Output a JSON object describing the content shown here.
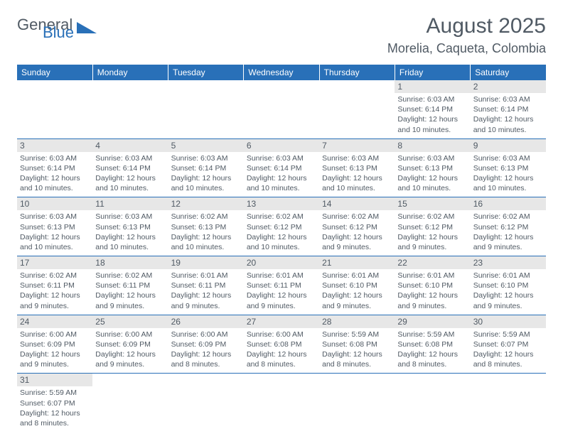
{
  "logo": {
    "text1": "General",
    "text2": "Blue",
    "icon_color": "#2970b8",
    "text_color": "#505a64"
  },
  "header": {
    "title": "August 2025",
    "location": "Morelia, Caqueta, Colombia"
  },
  "colors": {
    "header_bg": "#2970b8",
    "header_fg": "#ffffff",
    "daybar": "#e7e7e7",
    "text": "#505a64",
    "rule": "#2970b8"
  },
  "weekdays": [
    "Sunday",
    "Monday",
    "Tuesday",
    "Wednesday",
    "Thursday",
    "Friday",
    "Saturday"
  ],
  "weeks": [
    [
      null,
      null,
      null,
      null,
      null,
      {
        "n": "1",
        "sr": "6:03 AM",
        "ss": "6:14 PM",
        "dl": "12 hours and 10 minutes."
      },
      {
        "n": "2",
        "sr": "6:03 AM",
        "ss": "6:14 PM",
        "dl": "12 hours and 10 minutes."
      }
    ],
    [
      {
        "n": "3",
        "sr": "6:03 AM",
        "ss": "6:14 PM",
        "dl": "12 hours and 10 minutes."
      },
      {
        "n": "4",
        "sr": "6:03 AM",
        "ss": "6:14 PM",
        "dl": "12 hours and 10 minutes."
      },
      {
        "n": "5",
        "sr": "6:03 AM",
        "ss": "6:14 PM",
        "dl": "12 hours and 10 minutes."
      },
      {
        "n": "6",
        "sr": "6:03 AM",
        "ss": "6:14 PM",
        "dl": "12 hours and 10 minutes."
      },
      {
        "n": "7",
        "sr": "6:03 AM",
        "ss": "6:13 PM",
        "dl": "12 hours and 10 minutes."
      },
      {
        "n": "8",
        "sr": "6:03 AM",
        "ss": "6:13 PM",
        "dl": "12 hours and 10 minutes."
      },
      {
        "n": "9",
        "sr": "6:03 AM",
        "ss": "6:13 PM",
        "dl": "12 hours and 10 minutes."
      }
    ],
    [
      {
        "n": "10",
        "sr": "6:03 AM",
        "ss": "6:13 PM",
        "dl": "12 hours and 10 minutes."
      },
      {
        "n": "11",
        "sr": "6:03 AM",
        "ss": "6:13 PM",
        "dl": "12 hours and 10 minutes."
      },
      {
        "n": "12",
        "sr": "6:02 AM",
        "ss": "6:13 PM",
        "dl": "12 hours and 10 minutes."
      },
      {
        "n": "13",
        "sr": "6:02 AM",
        "ss": "6:12 PM",
        "dl": "12 hours and 10 minutes."
      },
      {
        "n": "14",
        "sr": "6:02 AM",
        "ss": "6:12 PM",
        "dl": "12 hours and 9 minutes."
      },
      {
        "n": "15",
        "sr": "6:02 AM",
        "ss": "6:12 PM",
        "dl": "12 hours and 9 minutes."
      },
      {
        "n": "16",
        "sr": "6:02 AM",
        "ss": "6:12 PM",
        "dl": "12 hours and 9 minutes."
      }
    ],
    [
      {
        "n": "17",
        "sr": "6:02 AM",
        "ss": "6:11 PM",
        "dl": "12 hours and 9 minutes."
      },
      {
        "n": "18",
        "sr": "6:02 AM",
        "ss": "6:11 PM",
        "dl": "12 hours and 9 minutes."
      },
      {
        "n": "19",
        "sr": "6:01 AM",
        "ss": "6:11 PM",
        "dl": "12 hours and 9 minutes."
      },
      {
        "n": "20",
        "sr": "6:01 AM",
        "ss": "6:11 PM",
        "dl": "12 hours and 9 minutes."
      },
      {
        "n": "21",
        "sr": "6:01 AM",
        "ss": "6:10 PM",
        "dl": "12 hours and 9 minutes."
      },
      {
        "n": "22",
        "sr": "6:01 AM",
        "ss": "6:10 PM",
        "dl": "12 hours and 9 minutes."
      },
      {
        "n": "23",
        "sr": "6:01 AM",
        "ss": "6:10 PM",
        "dl": "12 hours and 9 minutes."
      }
    ],
    [
      {
        "n": "24",
        "sr": "6:00 AM",
        "ss": "6:09 PM",
        "dl": "12 hours and 9 minutes."
      },
      {
        "n": "25",
        "sr": "6:00 AM",
        "ss": "6:09 PM",
        "dl": "12 hours and 9 minutes."
      },
      {
        "n": "26",
        "sr": "6:00 AM",
        "ss": "6:09 PM",
        "dl": "12 hours and 8 minutes."
      },
      {
        "n": "27",
        "sr": "6:00 AM",
        "ss": "6:08 PM",
        "dl": "12 hours and 8 minutes."
      },
      {
        "n": "28",
        "sr": "5:59 AM",
        "ss": "6:08 PM",
        "dl": "12 hours and 8 minutes."
      },
      {
        "n": "29",
        "sr": "5:59 AM",
        "ss": "6:08 PM",
        "dl": "12 hours and 8 minutes."
      },
      {
        "n": "30",
        "sr": "5:59 AM",
        "ss": "6:07 PM",
        "dl": "12 hours and 8 minutes."
      }
    ],
    [
      {
        "n": "31",
        "sr": "5:59 AM",
        "ss": "6:07 PM",
        "dl": "12 hours and 8 minutes."
      },
      null,
      null,
      null,
      null,
      null,
      null
    ]
  ],
  "labels": {
    "sunrise": "Sunrise:",
    "sunset": "Sunset:",
    "daylight": "Daylight:"
  }
}
